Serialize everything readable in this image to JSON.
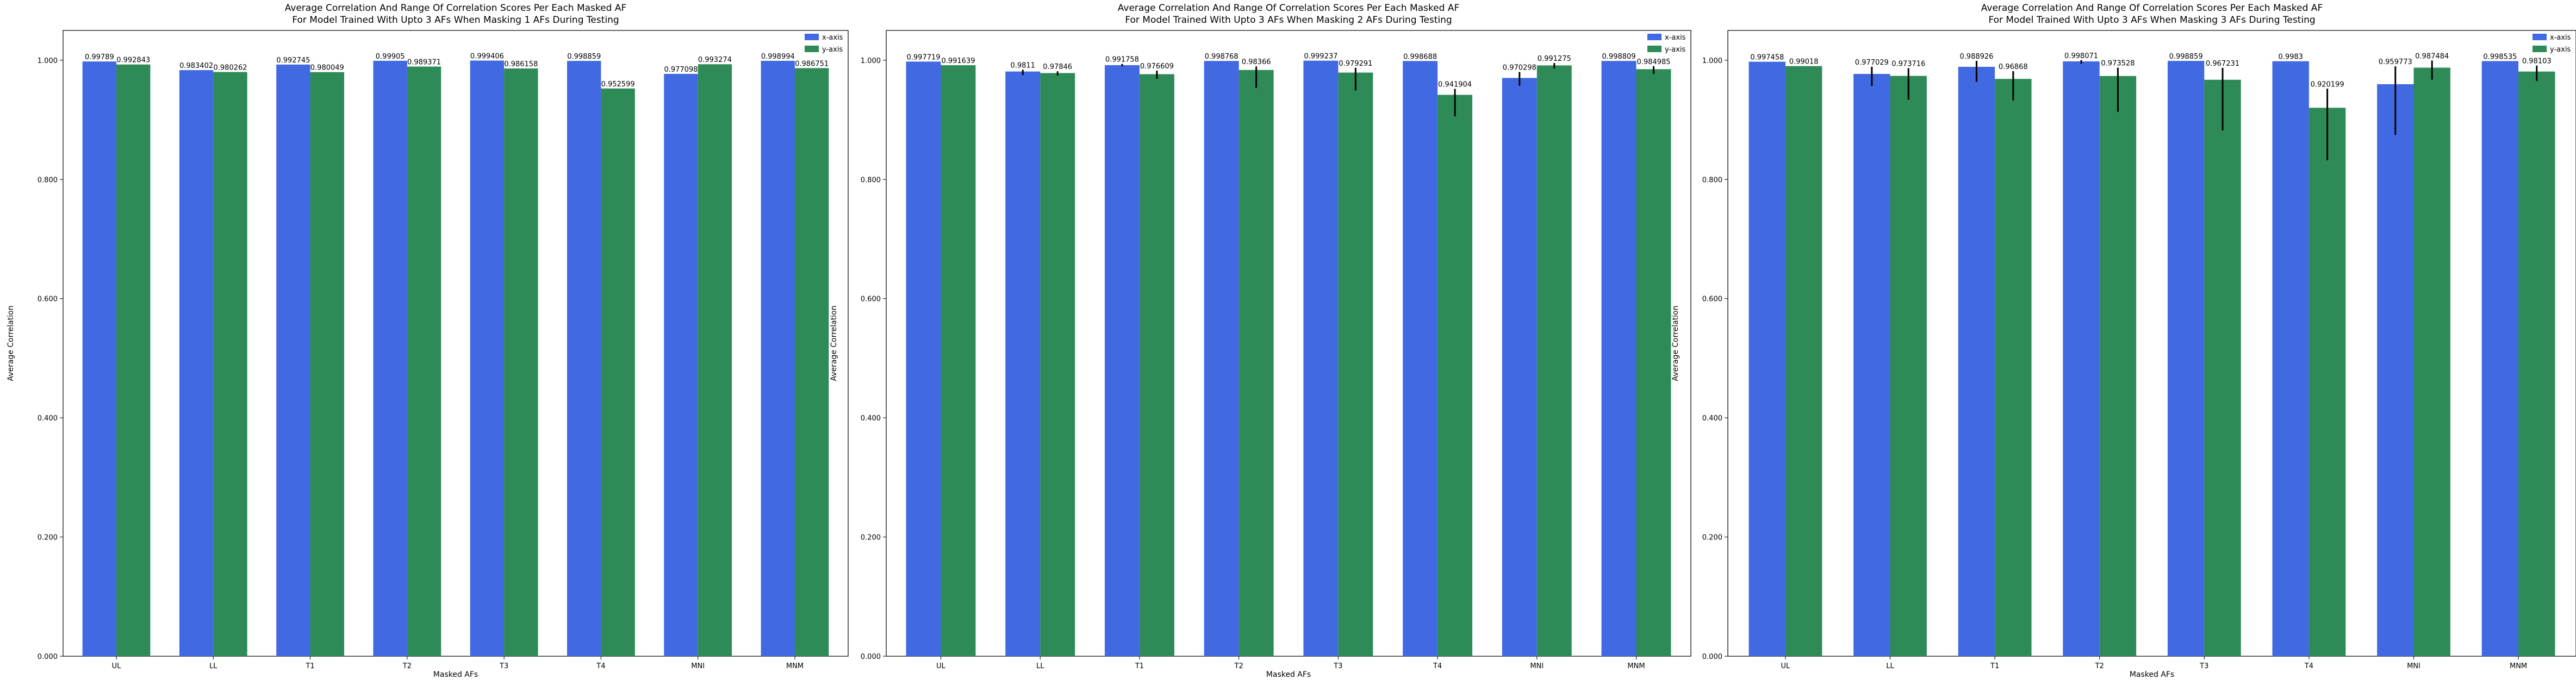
{
  "chart_data": [
    {
      "type": "bar",
      "title": "Average Correlation And Range Of Correlation Scores Per Each Masked AF",
      "subtitle": "For Model Trained With Upto 3 AFs When Masking 1 AFs During Testing",
      "xlabel": "Masked AFs",
      "ylabel": "Average Correlation",
      "categories": [
        "UL",
        "LL",
        "T1",
        "T2",
        "T3",
        "T4",
        "MNI",
        "MNM"
      ],
      "ylim": [
        0,
        1.05
      ],
      "yticks": [
        "0.000",
        "0.200",
        "0.400",
        "0.600",
        "0.800",
        "1.000"
      ],
      "legend_position": "top-right",
      "grid": false,
      "series": [
        {
          "name": "x-axis",
          "color": "#4169e1",
          "values": [
            0.99789,
            0.983402,
            0.992745,
            0.99905,
            0.999406,
            0.998859,
            0.977098,
            0.998994
          ],
          "labels": [
            "0.99789",
            "0.983402",
            "0.992745",
            "0.99905",
            "0.999406",
            "0.998859",
            "0.977098",
            "0.998994"
          ],
          "err_low": [
            0,
            0,
            0,
            0,
            0,
            0,
            0,
            0
          ],
          "err_high": [
            0,
            0,
            0,
            0,
            0,
            0,
            0,
            0
          ]
        },
        {
          "name": "y-axis",
          "color": "#2e8b57",
          "values": [
            0.992843,
            0.980262,
            0.980049,
            0.989371,
            0.986158,
            0.952599,
            0.993274,
            0.986751
          ],
          "labels": [
            "0.992843",
            "0.980262",
            "0.980049",
            "0.989371",
            "0.986158",
            "0.952599",
            "0.993274",
            "0.986751"
          ],
          "err_low": [
            0,
            0,
            0,
            0,
            0,
            0,
            0,
            0
          ],
          "err_high": [
            0,
            0,
            0,
            0,
            0,
            0,
            0,
            0
          ]
        }
      ]
    },
    {
      "type": "bar",
      "title": "Average Correlation And Range Of Correlation Scores Per Each Masked AF",
      "subtitle": "For Model Trained With Upto 3 AFs When Masking 2 AFs During Testing",
      "xlabel": "Masked AFs",
      "ylabel": "Average Correlation",
      "categories": [
        "UL",
        "LL",
        "T1",
        "T2",
        "T3",
        "T4",
        "MNI",
        "MNM"
      ],
      "ylim": [
        0,
        1.05
      ],
      "yticks": [
        "0.000",
        "0.200",
        "0.400",
        "0.600",
        "0.800",
        "1.000"
      ],
      "legend_position": "top-right",
      "grid": false,
      "series": [
        {
          "name": "x-axis",
          "color": "#4169e1",
          "values": [
            0.997719,
            0.9811,
            0.991758,
            0.998768,
            0.999237,
            0.998688,
            0.970298,
            0.998809
          ],
          "labels": [
            "0.997719",
            "0.9811",
            "0.991758",
            "0.998768",
            "0.999237",
            "0.998688",
            "0.970298",
            "0.998809"
          ],
          "err_low": [
            0,
            0.006,
            0.002,
            0,
            0,
            0,
            0.013,
            0
          ],
          "err_high": [
            0,
            0.003,
            0.002,
            0,
            0,
            0,
            0.01,
            0
          ]
        },
        {
          "name": "y-axis",
          "color": "#2e8b57",
          "values": [
            0.991639,
            0.97846,
            0.976609,
            0.98366,
            0.979291,
            0.941904,
            0.991275,
            0.984985
          ],
          "labels": [
            "0.991639",
            "0.97846",
            "0.976609",
            "0.98366",
            "0.979291",
            "0.941904",
            "0.991275",
            "0.984985"
          ],
          "err_low": [
            0,
            0.004,
            0.008,
            0.03,
            0.03,
            0.036,
            0.005,
            0.008
          ],
          "err_high": [
            0,
            0.003,
            0.006,
            0.006,
            0.008,
            0.01,
            0.004,
            0.005
          ]
        }
      ]
    },
    {
      "type": "bar",
      "title": "Average Correlation And Range Of Correlation Scores Per Each Masked AF",
      "subtitle": "For Model Trained With Upto 3 AFs When Masking 3 AFs During Testing",
      "xlabel": "Masked AFs",
      "ylabel": "Average Correlation",
      "categories": [
        "UL",
        "LL",
        "T1",
        "T2",
        "T3",
        "T4",
        "MNI",
        "MNM"
      ],
      "ylim": [
        0,
        1.05
      ],
      "yticks": [
        "0.000",
        "0.200",
        "0.400",
        "0.600",
        "0.800",
        "1.000"
      ],
      "legend_position": "top-right",
      "grid": false,
      "series": [
        {
          "name": "x-axis",
          "color": "#4169e1",
          "values": [
            0.997458,
            0.977029,
            0.988926,
            0.998071,
            0.998859,
            0.9983,
            0.959773,
            0.998535
          ],
          "labels": [
            "0.997458",
            "0.977029",
            "0.988926",
            "0.998071",
            "0.998859",
            "0.9983",
            "0.959773",
            "0.998535"
          ],
          "err_low": [
            0,
            0.02,
            0.025,
            0.004,
            0,
            0,
            0.085,
            0
          ],
          "err_high": [
            0,
            0.012,
            0.01,
            0.002,
            0,
            0,
            0.03,
            0
          ]
        },
        {
          "name": "y-axis",
          "color": "#2e8b57",
          "values": [
            0.99018,
            0.973716,
            0.96868,
            0.973528,
            0.967231,
            0.920199,
            0.987484,
            0.98103
          ],
          "labels": [
            "0.99018",
            "0.973716",
            "0.96868",
            "0.973528",
            "0.967231",
            "0.920199",
            "0.987484",
            "0.98103"
          ],
          "err_low": [
            0,
            0.04,
            0.036,
            0.06,
            0.085,
            0.088,
            0.02,
            0.016
          ],
          "err_high": [
            0,
            0.013,
            0.013,
            0.014,
            0.02,
            0.032,
            0.012,
            0.01
          ]
        }
      ]
    }
  ]
}
